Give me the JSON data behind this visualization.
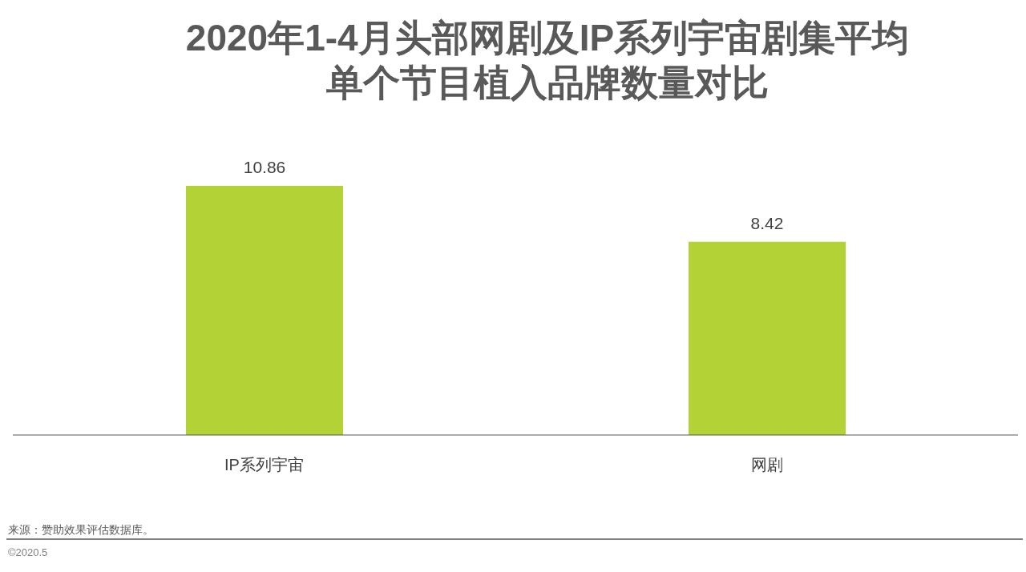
{
  "chart_data": {
    "type": "bar",
    "title": "2020年1-4月头部网剧及IP系列宇宙剧集平均单个节目植入品牌数量对比",
    "categories": [
      "IP系列宇宙",
      "网剧"
    ],
    "values": [
      10.86,
      8.42
    ],
    "color": "#b2d235",
    "data_labels": true,
    "tick_labels": "x",
    "annotations": [
      "来源：赞助效果评估数据库。",
      "©2020.5"
    ]
  }
}
